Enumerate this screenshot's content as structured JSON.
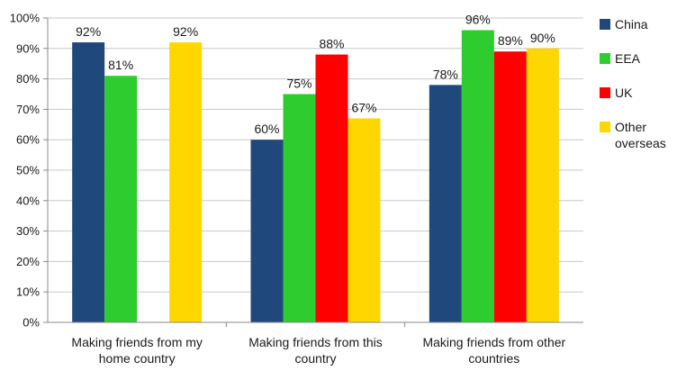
{
  "chart_data": {
    "type": "bar",
    "title": "",
    "xlabel": "",
    "ylabel": "",
    "ylim": [
      0,
      100
    ],
    "y_unit": "%",
    "grid": true,
    "legend_position": "right",
    "y_ticks": [
      "0%",
      "10%",
      "20%",
      "30%",
      "40%",
      "50%",
      "60%",
      "70%",
      "80%",
      "90%",
      "100%"
    ],
    "categories": [
      [
        "Making friends from my",
        "home country"
      ],
      [
        "Making friends from this",
        "country"
      ],
      [
        "Making friends from other",
        "countries"
      ]
    ],
    "series": [
      {
        "name": "China",
        "color": "#1f497d",
        "values": [
          92,
          60,
          78
        ],
        "labels": [
          "92%",
          "60%",
          "78%"
        ]
      },
      {
        "name": "EEA",
        "color": "#2ecc2e",
        "values": [
          81,
          75,
          96
        ],
        "labels": [
          "81%",
          "75%",
          "96%"
        ]
      },
      {
        "name": "UK",
        "color": "#ff0000",
        "values": [
          null,
          88,
          89
        ],
        "labels": [
          null,
          "88%",
          "89%"
        ]
      },
      {
        "name": "Other overseas",
        "color": "#ffd700",
        "values": [
          92,
          67,
          90
        ],
        "labels": [
          "92%",
          "67%",
          "90%"
        ]
      }
    ]
  }
}
